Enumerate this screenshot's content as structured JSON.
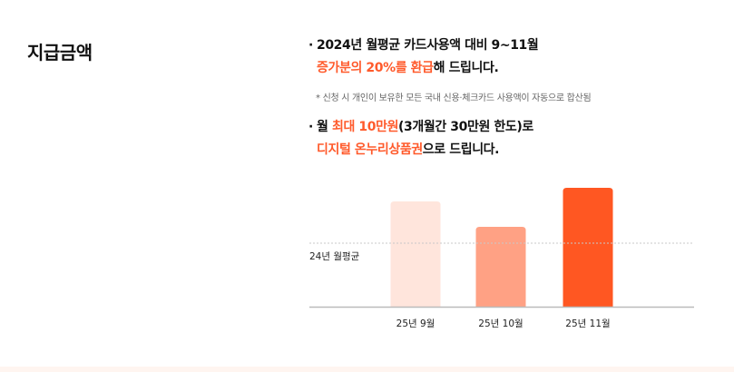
{
  "section_title": "지급금액",
  "bullet_char": "·",
  "info1": {
    "line1": "2024년 월평균 카드사용액 대비 9~11월",
    "line2_highlight": "증가분의 20%를 환급",
    "line2_rest": "해 드립니다."
  },
  "note": "* 신청 시 개인이 보유한 모든 국내 신용·체크카드 사용액이 자동으로 합산됨",
  "info2": {
    "line1_pre": "월 ",
    "line1_highlight": "최대 10만원",
    "line1_rest": "(3개월간 30만원 한도)로",
    "line2_highlight": "디지털 온누리상품권",
    "line2_rest": "으로 드립니다."
  },
  "colors": {
    "accent": "#ff5a2b",
    "bar_light": "#ffe5dc",
    "bar_mid": "#ffa184",
    "bar_strong": "#ff5722",
    "baseline": "#bbbbbb",
    "reference_line": "#c8c8c8"
  },
  "chart_data": {
    "type": "bar",
    "categories": [
      "25년 9월",
      "25년 10월",
      "25년 11월"
    ],
    "values": [
      116,
      88,
      131
    ],
    "ylim": [
      0,
      140
    ],
    "reference_line": {
      "label": "24년 월평균",
      "value": 70
    },
    "bar_colors": [
      "#ffe5dc",
      "#ffa184",
      "#ff5722"
    ],
    "grid": false,
    "title": "",
    "xlabel": "",
    "ylabel": ""
  }
}
